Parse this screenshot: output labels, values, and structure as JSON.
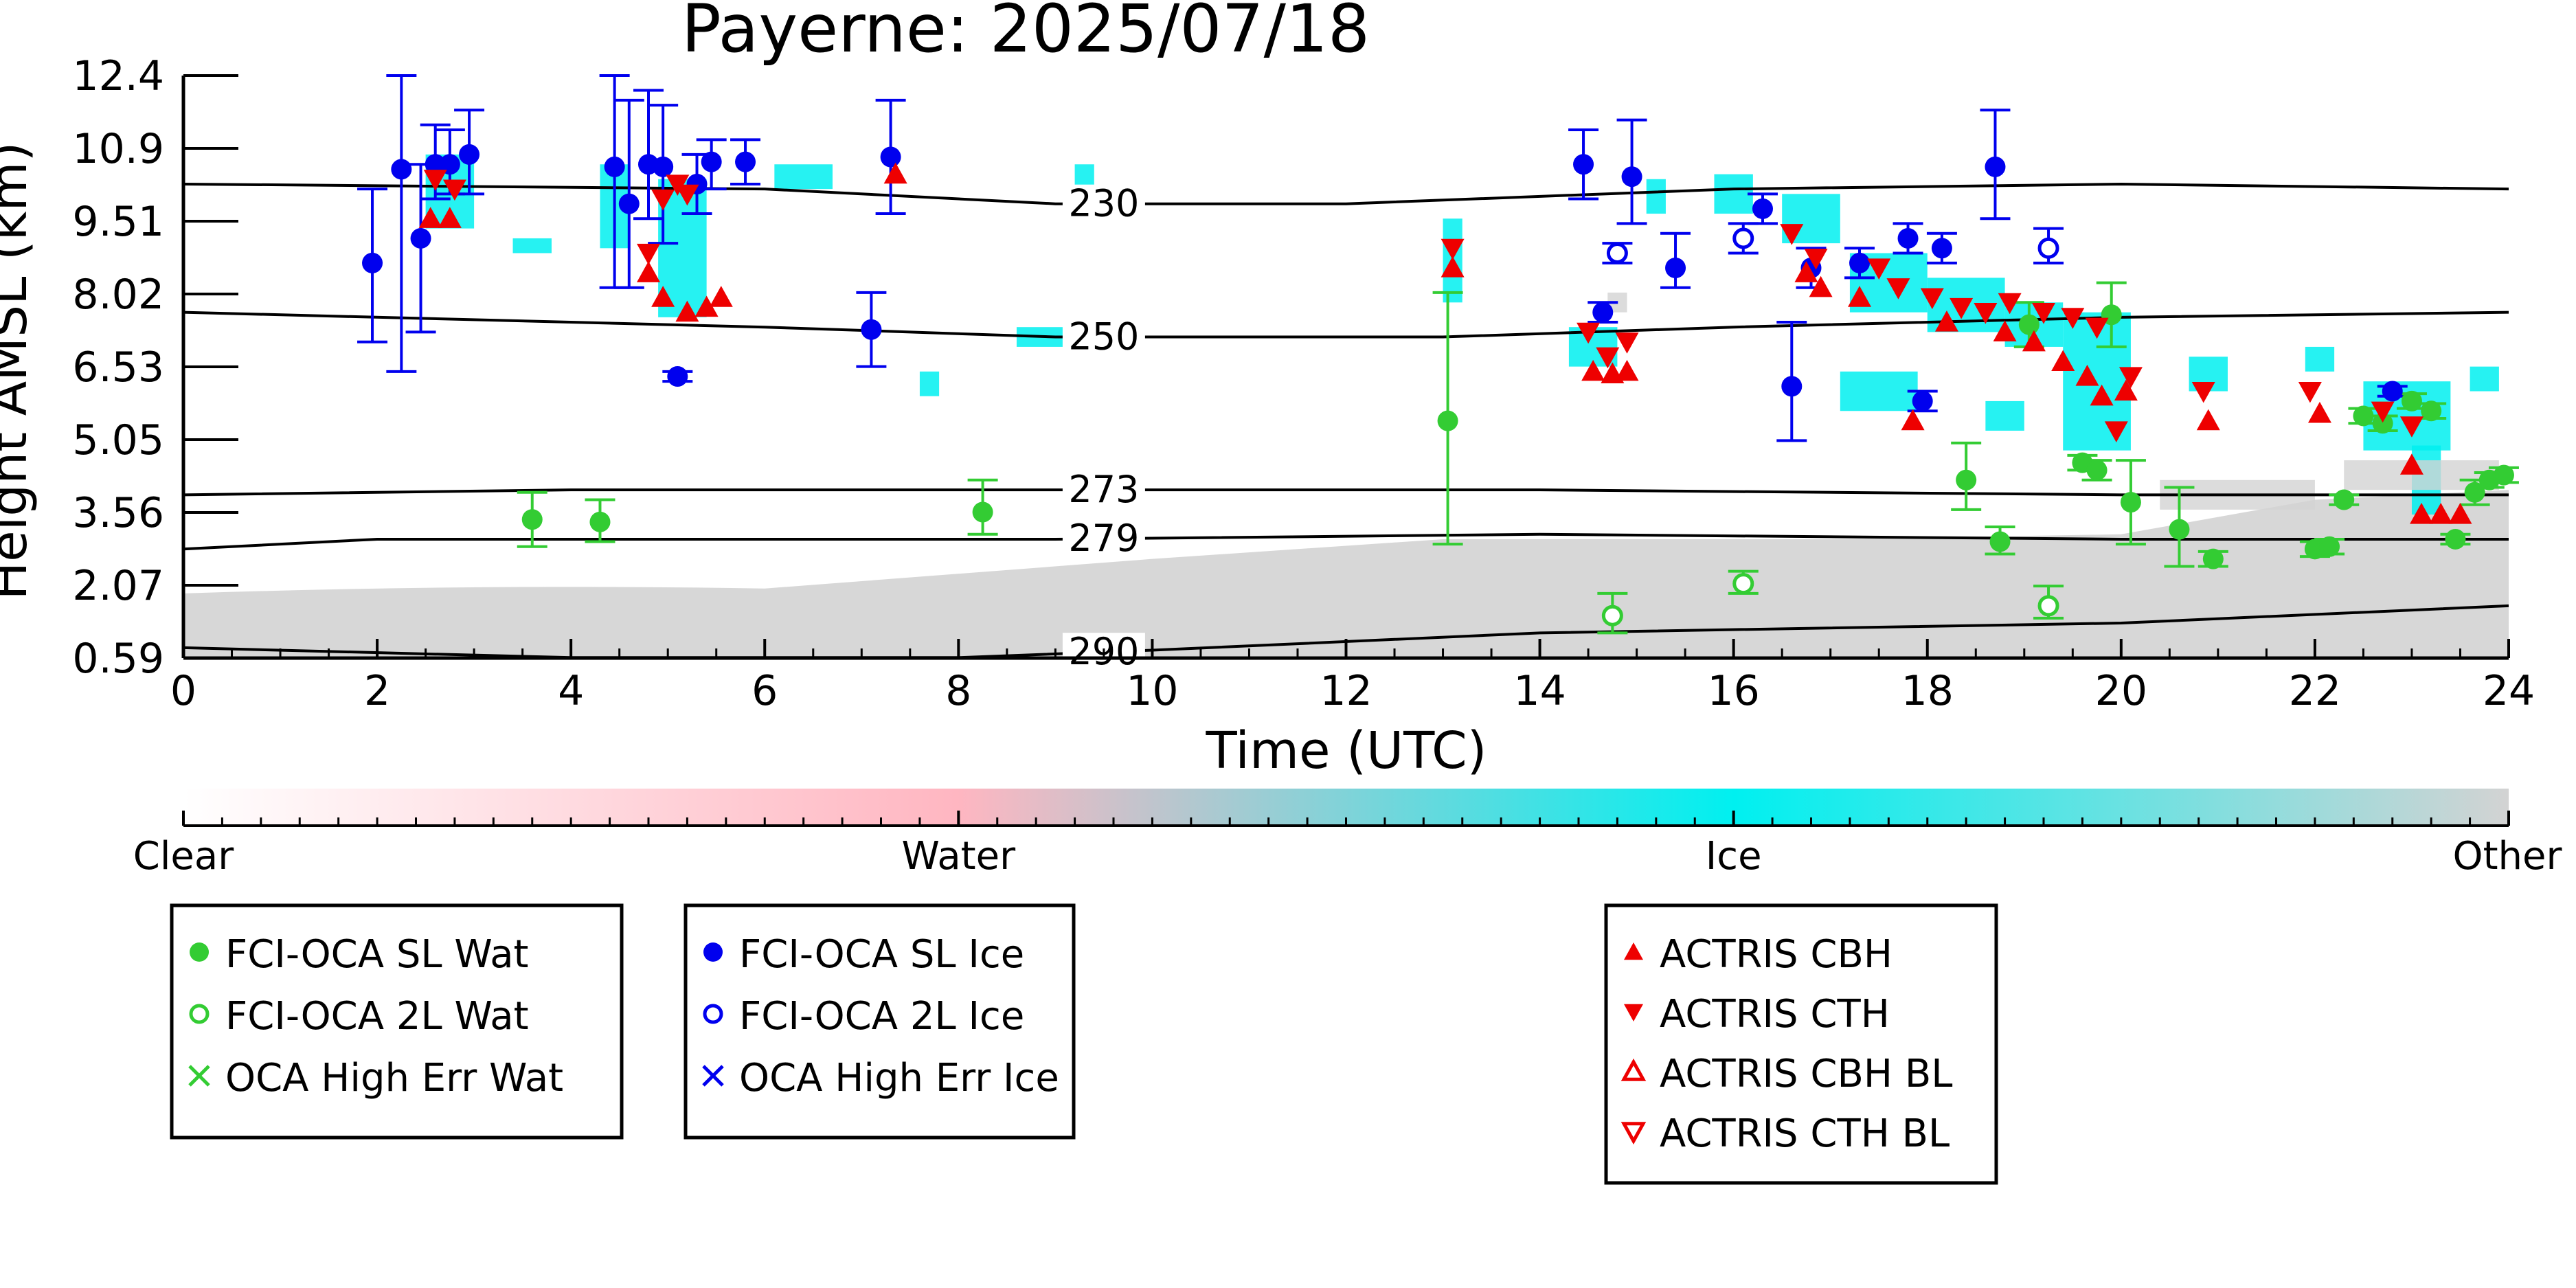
{
  "chart_data": {
    "type": "scatter",
    "title": "Payerne: 2025/07/18",
    "xlabel": "Time (UTC)",
    "ylabel": "Height AMSL (km)",
    "xlim": [
      0,
      24
    ],
    "ylim": [
      0.59,
      12.4
    ],
    "x_ticks": [
      "0",
      "2",
      "4",
      "6",
      "8",
      "10",
      "12",
      "14",
      "16",
      "18",
      "20",
      "22",
      "24"
    ],
    "y_ticks": [
      "0.59",
      "2.07",
      "3.56",
      "5.05",
      "6.53",
      "8.02",
      "9.51",
      "10.9",
      "12.4"
    ],
    "colorbar": {
      "labels": [
        "Clear",
        "Water",
        "Ice",
        "Other"
      ],
      "colors": [
        "#ffffff",
        "#ffb6c1",
        "#00f0f0",
        "#d3d3d3"
      ]
    },
    "isotherms": [
      {
        "label": "230",
        "points": [
          [
            0,
            10.2
          ],
          [
            6,
            10.1
          ],
          [
            9,
            9.8
          ],
          [
            12,
            9.8
          ],
          [
            16,
            10.1
          ],
          [
            20,
            10.2
          ],
          [
            24,
            10.1
          ]
        ]
      },
      {
        "label": "250",
        "points": [
          [
            0,
            7.6
          ],
          [
            6,
            7.3
          ],
          [
            9,
            7.1
          ],
          [
            13,
            7.1
          ],
          [
            16,
            7.3
          ],
          [
            20,
            7.5
          ],
          [
            24,
            7.6
          ]
        ]
      },
      {
        "label": "273",
        "points": [
          [
            0,
            3.9
          ],
          [
            4,
            4.0
          ],
          [
            9,
            4.0
          ],
          [
            14,
            4.0
          ],
          [
            20,
            3.9
          ],
          [
            24,
            3.9
          ]
        ]
      },
      {
        "label": "279",
        "points": [
          [
            0,
            2.8
          ],
          [
            2,
            3.0
          ],
          [
            9,
            3.0
          ],
          [
            14,
            3.1
          ],
          [
            20,
            3.0
          ],
          [
            24,
            3.0
          ]
        ]
      },
      {
        "label": "290",
        "points": [
          [
            0,
            0.8
          ],
          [
            4,
            0.6
          ],
          [
            8,
            0.6
          ],
          [
            10,
            0.75
          ],
          [
            14,
            1.1
          ],
          [
            20,
            1.3
          ],
          [
            24,
            1.65
          ]
        ]
      }
    ],
    "legend_groups": [
      {
        "entries": [
          {
            "label": "FCI-OCA SL Wat",
            "marker": "circle-filled",
            "color": "#33cc33"
          },
          {
            "label": "FCI-OCA 2L Wat",
            "marker": "circle-open",
            "color": "#33cc33"
          },
          {
            "label": "OCA High Err Wat",
            "marker": "x",
            "color": "#33cc33"
          }
        ]
      },
      {
        "entries": [
          {
            "label": "FCI-OCA SL Ice",
            "marker": "circle-filled",
            "color": "#0000ee"
          },
          {
            "label": "FCI-OCA 2L Ice",
            "marker": "circle-open",
            "color": "#0000ee"
          },
          {
            "label": "OCA High Err Ice",
            "marker": "x",
            "color": "#0000ee"
          }
        ]
      },
      {
        "entries": [
          {
            "label": "ACTRIS CBH",
            "marker": "tri-up",
            "color": "#ee0000"
          },
          {
            "label": "ACTRIS CTH",
            "marker": "tri-down",
            "color": "#ee0000"
          },
          {
            "label": "ACTRIS CBH BL",
            "marker": "tri-up-open",
            "color": "#ee0000"
          },
          {
            "label": "ACTRIS CTH BL",
            "marker": "tri-down-open",
            "color": "#ee0000"
          }
        ]
      }
    ],
    "series": [
      {
        "name": "FCI-OCA SL Ice",
        "color": "#0000ee",
        "marker": "circle-filled",
        "points": [
          [
            1.95,
            8.6,
            7.0,
            10.1
          ],
          [
            2.25,
            10.5,
            6.4,
            12.4
          ],
          [
            2.45,
            9.1,
            7.2,
            10.6
          ],
          [
            2.6,
            10.6,
            9.9,
            11.4
          ],
          [
            2.75,
            10.6,
            10.0,
            11.3
          ],
          [
            2.95,
            10.8,
            10.0,
            11.7
          ],
          [
            4.45,
            10.55,
            8.1,
            12.4
          ],
          [
            4.6,
            9.8,
            8.1,
            11.9
          ],
          [
            4.8,
            10.6,
            9.5,
            12.1
          ],
          [
            4.95,
            10.55,
            9.0,
            11.8
          ],
          [
            5.1,
            6.3,
            6.2,
            6.4
          ],
          [
            5.3,
            10.2,
            9.6,
            10.8
          ],
          [
            5.45,
            10.65,
            10.1,
            11.1
          ],
          [
            5.8,
            10.65,
            10.2,
            11.1
          ],
          [
            7.1,
            7.25,
            6.5,
            8.0
          ],
          [
            7.3,
            10.75,
            9.6,
            11.9
          ],
          [
            14.45,
            10.6,
            9.9,
            11.3
          ],
          [
            14.65,
            7.6,
            7.4,
            7.8
          ],
          [
            14.95,
            10.35,
            9.4,
            11.5
          ],
          [
            15.4,
            8.5,
            8.1,
            9.2
          ],
          [
            16.3,
            9.7,
            9.4,
            10.0
          ],
          [
            16.6,
            6.1,
            5.0,
            7.4
          ],
          [
            16.8,
            8.5,
            8.1,
            8.9
          ],
          [
            17.3,
            8.6,
            8.3,
            8.9
          ],
          [
            17.8,
            9.1,
            8.8,
            9.4
          ],
          [
            17.95,
            5.8,
            5.6,
            6.0
          ],
          [
            18.15,
            8.9,
            8.6,
            9.2
          ],
          [
            18.7,
            10.55,
            9.5,
            11.7
          ],
          [
            22.8,
            6.0,
            5.9,
            6.1
          ]
        ]
      },
      {
        "name": "FCI-OCA 2L Ice",
        "color": "#0000ee",
        "marker": "circle-open",
        "points": [
          [
            14.8,
            8.8,
            8.6,
            9.0
          ],
          [
            16.1,
            9.1,
            8.8,
            9.4
          ],
          [
            19.25,
            8.9,
            8.6,
            9.3
          ]
        ]
      },
      {
        "name": "FCI-OCA SL Wat",
        "color": "#33cc33",
        "marker": "circle-filled",
        "points": [
          [
            3.6,
            3.4,
            2.85,
            3.95
          ],
          [
            4.3,
            3.35,
            2.95,
            3.8
          ],
          [
            8.25,
            3.55,
            3.1,
            4.2
          ],
          [
            13.05,
            5.4,
            2.9,
            8.0
          ],
          [
            18.4,
            4.2,
            3.6,
            4.95
          ],
          [
            18.75,
            2.95,
            2.7,
            3.25
          ],
          [
            19.05,
            7.35,
            6.9,
            7.8
          ],
          [
            19.6,
            4.55,
            4.4,
            4.7
          ],
          [
            19.75,
            4.4,
            4.2,
            4.6
          ],
          [
            19.9,
            7.55,
            6.9,
            8.2
          ],
          [
            20.1,
            3.75,
            2.9,
            4.6
          ],
          [
            20.6,
            3.2,
            2.45,
            4.05
          ],
          [
            20.95,
            2.6,
            2.45,
            2.75
          ],
          [
            22.0,
            2.8,
            2.65,
            2.95
          ],
          [
            22.15,
            2.85,
            2.7,
            3.0
          ],
          [
            22.3,
            3.8,
            3.7,
            3.9
          ],
          [
            22.5,
            5.5,
            5.35,
            5.65
          ],
          [
            22.7,
            5.35,
            5.2,
            5.5
          ],
          [
            23.0,
            5.8,
            5.65,
            5.95
          ],
          [
            23.2,
            5.6,
            5.45,
            5.75
          ],
          [
            23.45,
            3.0,
            2.9,
            3.1
          ],
          [
            23.65,
            3.95,
            3.7,
            4.2
          ],
          [
            23.8,
            4.2,
            4.05,
            4.35
          ],
          [
            23.95,
            4.3,
            4.15,
            4.45
          ]
        ]
      },
      {
        "name": "FCI-OCA 2L Wat",
        "color": "#33cc33",
        "marker": "circle-open",
        "points": [
          [
            14.75,
            1.45,
            1.1,
            1.9
          ],
          [
            16.1,
            2.1,
            1.9,
            2.35
          ],
          [
            19.25,
            1.65,
            1.4,
            2.05
          ]
        ]
      },
      {
        "name": "ACTRIS CBH",
        "color": "#ee0000",
        "marker": "tri-up",
        "points": [
          [
            2.55,
            9.5
          ],
          [
            2.75,
            9.5
          ],
          [
            4.8,
            8.4
          ],
          [
            4.95,
            7.9
          ],
          [
            5.2,
            7.6
          ],
          [
            5.4,
            7.7
          ],
          [
            5.55,
            7.9
          ],
          [
            7.35,
            10.4
          ],
          [
            13.1,
            8.5
          ],
          [
            14.55,
            6.4
          ],
          [
            14.75,
            6.35
          ],
          [
            14.9,
            6.4
          ],
          [
            16.75,
            8.4
          ],
          [
            16.9,
            8.1
          ],
          [
            17.3,
            7.9
          ],
          [
            17.85,
            5.4
          ],
          [
            18.2,
            7.4
          ],
          [
            18.8,
            7.2
          ],
          [
            19.1,
            7.0
          ],
          [
            19.4,
            6.6
          ],
          [
            19.65,
            6.3
          ],
          [
            19.8,
            5.9
          ],
          [
            20.05,
            6.0
          ],
          [
            20.9,
            5.4
          ],
          [
            22.05,
            5.55
          ],
          [
            23.0,
            4.5
          ],
          [
            23.1,
            3.5
          ],
          [
            23.3,
            3.5
          ],
          [
            23.5,
            3.5
          ]
        ]
      },
      {
        "name": "ACTRIS CTH",
        "color": "#ee0000",
        "marker": "tri-down",
        "points": [
          [
            2.6,
            10.3
          ],
          [
            2.8,
            10.1
          ],
          [
            4.8,
            8.8
          ],
          [
            4.95,
            9.9
          ],
          [
            5.1,
            10.2
          ],
          [
            5.2,
            10.0
          ],
          [
            13.1,
            8.9
          ],
          [
            14.5,
            7.2
          ],
          [
            14.7,
            6.7
          ],
          [
            14.9,
            7.0
          ],
          [
            16.6,
            9.2
          ],
          [
            16.85,
            8.7
          ],
          [
            17.5,
            8.5
          ],
          [
            17.7,
            8.1
          ],
          [
            18.05,
            7.9
          ],
          [
            18.35,
            7.7
          ],
          [
            18.6,
            7.6
          ],
          [
            18.85,
            7.8
          ],
          [
            19.2,
            7.6
          ],
          [
            19.5,
            7.5
          ],
          [
            19.75,
            7.3
          ],
          [
            19.95,
            5.2
          ],
          [
            20.1,
            6.3
          ],
          [
            20.85,
            6.0
          ],
          [
            21.95,
            6.0
          ],
          [
            22.7,
            5.6
          ],
          [
            23.0,
            5.3
          ]
        ]
      }
    ]
  }
}
